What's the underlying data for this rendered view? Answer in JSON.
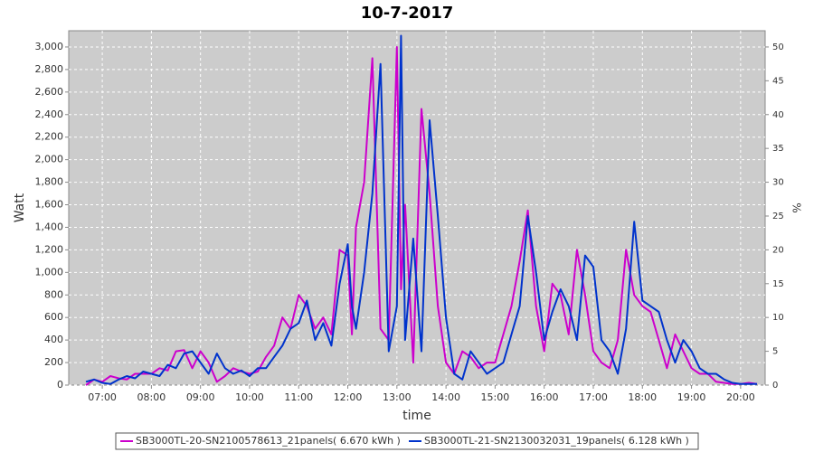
{
  "chart_data": {
    "type": "line",
    "title": "10-7-2017",
    "xlabel": "time",
    "ylabel": "Watt",
    "y2label": "%",
    "x": [
      "06:40",
      "06:50",
      "07:00",
      "07:10",
      "07:20",
      "07:30",
      "07:40",
      "07:50",
      "08:00",
      "08:10",
      "08:20",
      "08:30",
      "08:40",
      "08:50",
      "09:00",
      "09:10",
      "09:20",
      "09:30",
      "09:40",
      "09:50",
      "10:00",
      "10:10",
      "10:20",
      "10:30",
      "10:40",
      "10:50",
      "11:00",
      "11:10",
      "11:20",
      "11:30",
      "11:40",
      "11:50",
      "12:00",
      "12:05",
      "12:10",
      "12:20",
      "12:30",
      "12:40",
      "12:50",
      "13:00",
      "13:05",
      "13:10",
      "13:20",
      "13:30",
      "13:40",
      "13:50",
      "14:00",
      "14:10",
      "14:20",
      "14:30",
      "14:40",
      "14:50",
      "15:00",
      "15:10",
      "15:20",
      "15:30",
      "15:40",
      "15:50",
      "16:00",
      "16:10",
      "16:20",
      "16:30",
      "16:40",
      "16:50",
      "17:00",
      "17:10",
      "17:20",
      "17:30",
      "17:40",
      "17:50",
      "18:00",
      "18:10",
      "18:20",
      "18:30",
      "18:40",
      "18:50",
      "19:00",
      "19:10",
      "19:20",
      "19:30",
      "19:40",
      "19:50",
      "20:00",
      "20:10",
      "20:20"
    ],
    "series": [
      {
        "name": "SB3000TL-20-SN2100578613_21panels( 6.670 kWh )",
        "color": "#cc00cc",
        "values": [
          0,
          50,
          30,
          80,
          60,
          50,
          100,
          100,
          100,
          150,
          130,
          300,
          310,
          150,
          300,
          200,
          30,
          80,
          150,
          120,
          100,
          120,
          250,
          350,
          600,
          500,
          800,
          700,
          500,
          600,
          450,
          1200,
          1150,
          450,
          1400,
          1800,
          2900,
          500,
          400,
          3000,
          850,
          1600,
          200,
          2450,
          1700,
          700,
          200,
          100,
          300,
          250,
          150,
          200,
          200,
          450,
          700,
          1100,
          1550,
          700,
          300,
          900,
          800,
          450,
          1200,
          800,
          300,
          200,
          150,
          400,
          1200,
          800,
          700,
          650,
          400,
          150,
          450,
          300,
          150,
          100,
          100,
          30,
          20,
          10,
          10,
          20,
          10
        ]
      },
      {
        "name": "SB3000TL-21-SN2130032031_19panels( 6.128 kWh )",
        "color": "#0033cc",
        "values": [
          30,
          50,
          20,
          10,
          50,
          80,
          60,
          120,
          100,
          80,
          180,
          150,
          280,
          300,
          200,
          100,
          280,
          150,
          100,
          130,
          80,
          150,
          150,
          250,
          350,
          500,
          550,
          750,
          400,
          550,
          350,
          900,
          1250,
          700,
          500,
          1000,
          1700,
          2850,
          300,
          700,
          3100,
          400,
          1300,
          300,
          2350,
          1500,
          600,
          100,
          50,
          300,
          200,
          100,
          150,
          200,
          450,
          700,
          1500,
          1000,
          400,
          650,
          850,
          700,
          400,
          1150,
          1050,
          400,
          300,
          100,
          500,
          1450,
          750,
          700,
          650,
          400,
          200,
          400,
          300,
          150,
          100,
          100,
          50,
          20,
          10,
          10,
          10
        ]
      }
    ],
    "xlim": [
      "06:19",
      "20:30"
    ],
    "xticks": [
      "07:00",
      "08:00",
      "09:00",
      "10:00",
      "11:00",
      "12:00",
      "13:00",
      "14:00",
      "15:00",
      "16:00",
      "17:00",
      "18:00",
      "19:00",
      "20:00"
    ],
    "ylim": [
      0,
      3144
    ],
    "yticks": [
      0,
      200,
      400,
      600,
      800,
      {
        "value": 1000,
        "label": "1,000"
      },
      {
        "value": 1200,
        "label": "1,200"
      },
      {
        "value": 1400,
        "label": "1,400"
      },
      {
        "value": 1600,
        "label": "1,600"
      },
      {
        "value": 1800,
        "label": "1,800"
      },
      {
        "value": 2000,
        "label": "2,000"
      },
      {
        "value": 2200,
        "label": "2,200"
      },
      {
        "value": 2400,
        "label": "2,400"
      },
      {
        "value": 2600,
        "label": "2,600"
      },
      {
        "value": 2800,
        "label": "2,800"
      },
      {
        "value": 3000,
        "label": "3,000"
      }
    ],
    "y2lim": [
      0,
      52.4
    ],
    "y2ticks": [
      0,
      5,
      10,
      15,
      20,
      25,
      30,
      35,
      40,
      45,
      50
    ],
    "grid": true,
    "legend": "bottom"
  }
}
